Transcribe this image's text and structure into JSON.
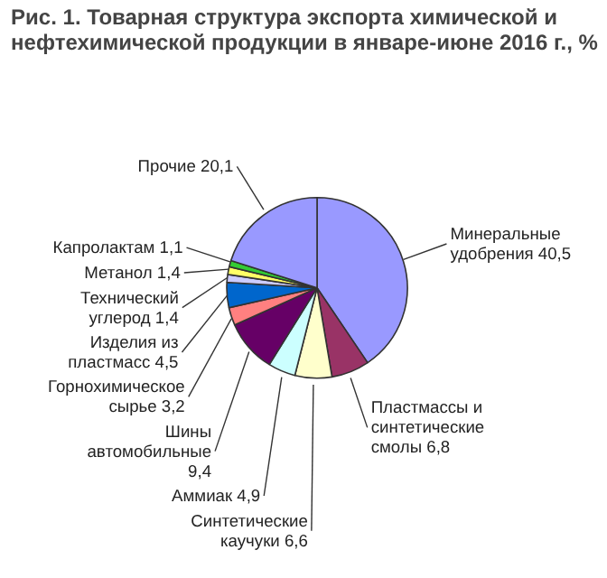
{
  "chart_data": {
    "type": "pie",
    "title": "Рис. 1. Товарная структура экспорта химической и нефтехимической продукции в январе-июне 2016 г., %",
    "categories": [
      "Минеральные удобрения",
      "Пластмассы и синтетические смолы",
      "Синтетические каучуки",
      "Аммиак",
      "Шины автомобильные",
      "Горнохимическое сырье",
      "Изделия из пластмасс",
      "Технический углерод",
      "Метанол",
      "Капролактам",
      "Прочие"
    ],
    "values": [
      40.5,
      6.8,
      6.6,
      4.9,
      9.4,
      3.2,
      4.5,
      1.4,
      1.4,
      1.1,
      20.1
    ],
    "value_labels": [
      "40,5",
      "6,8",
      "6,6",
      "4,9",
      "9,4",
      "3,2",
      "4,5",
      "1,4",
      "1,4",
      "1,1",
      "20,1"
    ],
    "colors": [
      "#9999ff",
      "#993366",
      "#ffffcc",
      "#ccffff",
      "#660066",
      "#ff8080",
      "#0066cc",
      "#ccccff",
      "#ffff66",
      "#33cc33",
      "#9999ff"
    ]
  }
}
